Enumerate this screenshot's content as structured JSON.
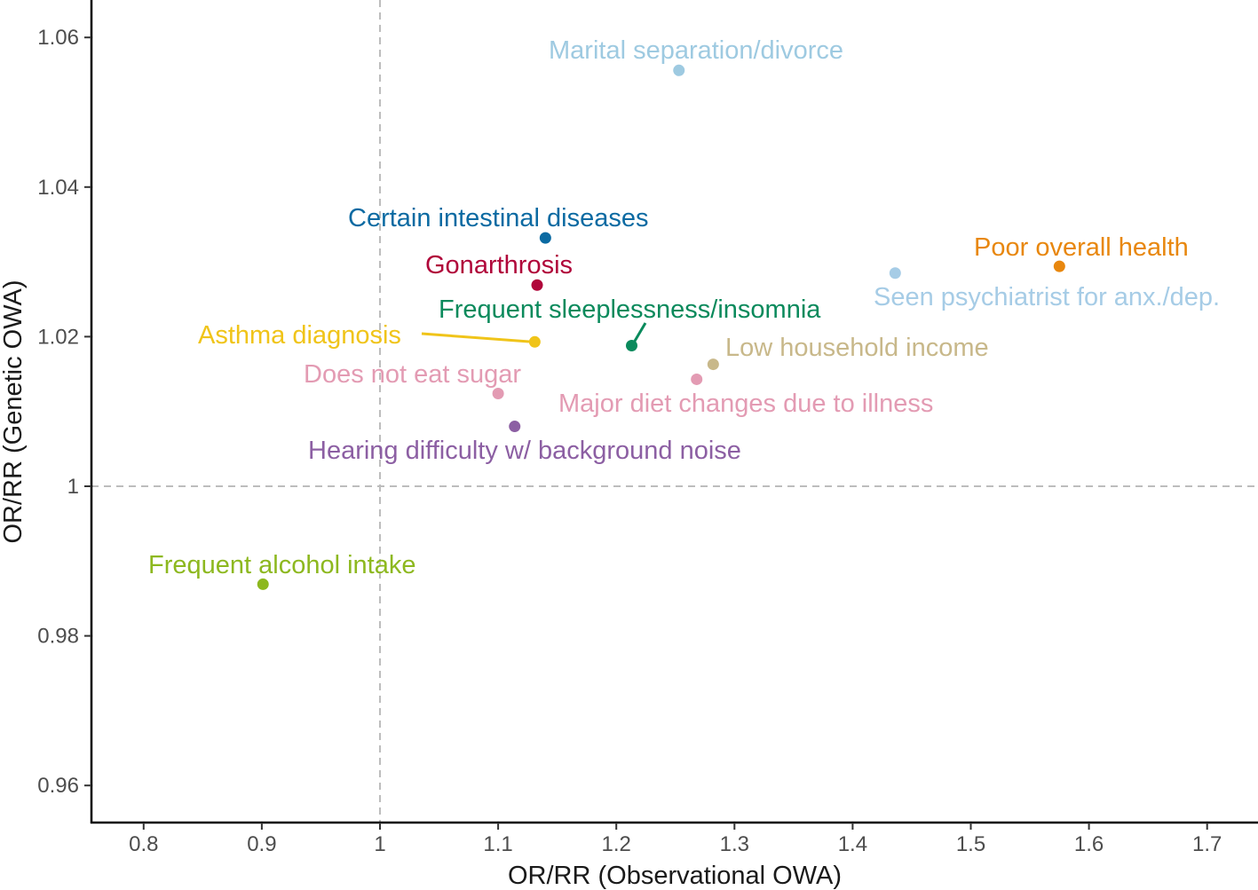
{
  "chart_data": {
    "type": "scatter",
    "title": "",
    "xlabel": "OR/RR (Observational OWA)",
    "ylabel": "OR/RR (Genetic OWA)",
    "xlim": [
      0.76,
      1.7
    ],
    "ylim": [
      0.955,
      1.065
    ],
    "x_ticks": [
      0.8,
      0.9,
      1.0,
      1.1,
      1.2,
      1.3,
      1.4,
      1.5,
      1.6,
      1.7
    ],
    "x_tick_labels": [
      "0.8",
      "0.9",
      "1",
      "1.1",
      "1.2",
      "1.3",
      "1.4",
      "1.5",
      "1.6",
      "1.7"
    ],
    "y_ticks": [
      0.96,
      0.98,
      1.0,
      1.02,
      1.04,
      1.06
    ],
    "y_tick_labels": [
      "0.96",
      "0.98",
      "1",
      "1.02",
      "1.04",
      "1.06"
    ],
    "reference_lines": {
      "x": 1.0,
      "y": 1.0,
      "style": "dashed"
    },
    "grid": false,
    "legend": "none",
    "points": [
      {
        "label": "Marital separation/divorce",
        "x": 1.253,
        "y": 1.0556,
        "color": "#9ecae1"
      },
      {
        "label": "Certain intestinal diseases",
        "x": 1.14,
        "y": 1.0332,
        "color": "#0b6aa2"
      },
      {
        "label": "Gonarthrosis",
        "x": 1.133,
        "y": 1.0269,
        "color": "#b0063a"
      },
      {
        "label": "Poor overall health",
        "x": 1.575,
        "y": 1.0294,
        "color": "#e8870e"
      },
      {
        "label": "Seen psychiatrist for anx./dep.",
        "x": 1.436,
        "y": 1.0285,
        "color": "#a6cce6"
      },
      {
        "label": "Frequent sleeplessness/insomnia",
        "x": 1.213,
        "y": 1.0188,
        "color": "#0a8a5c"
      },
      {
        "label": "Asthma diagnosis",
        "x": 1.131,
        "y": 1.0193,
        "color": "#f0c419"
      },
      {
        "label": "Low household income",
        "x": 1.282,
        "y": 1.0163,
        "color": "#c8b88a"
      },
      {
        "label": "Does not eat sugar",
        "x": 1.1,
        "y": 1.0124,
        "color": "#e39bb3"
      },
      {
        "label": "Major diet changes due to illness",
        "x": 1.268,
        "y": 1.0143,
        "color": "#e39bb3"
      },
      {
        "label": "Hearing difficulty w/ background noise",
        "x": 1.114,
        "y": 1.008,
        "color": "#8c5fa3"
      },
      {
        "label": "Frequent alcohol intake",
        "x": 0.901,
        "y": 0.9869,
        "color": "#8db81f"
      }
    ]
  }
}
